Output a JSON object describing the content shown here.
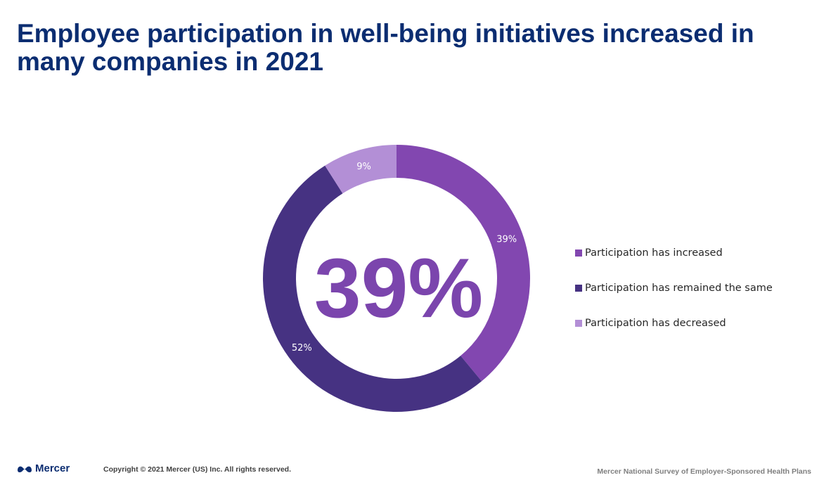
{
  "page": {
    "title": "Employee participation in well-being initiatives increased in many companies in 2021",
    "copyright": "Copyright © 2021 Mercer (US) Inc. All rights reserved.",
    "source": "Mercer National Survey of Employer-Sponsored Health Plans",
    "logo_text": "Mercer",
    "logo_icon": "mercer-logo-icon"
  },
  "chart_data": {
    "type": "pie",
    "donut": true,
    "center_label": "39%",
    "slices": [
      {
        "label": "Participation has increased",
        "value": 39,
        "data_label": "39%",
        "color": "#8247b0"
      },
      {
        "label": "Participation has remained the same",
        "value": 52,
        "data_label": "52%",
        "color": "#463282"
      },
      {
        "label": "Participation has decreased",
        "value": 9,
        "data_label": "9%",
        "color": "#b38fd6"
      }
    ],
    "legend_position": "right",
    "center_label_color": "#7b45ad"
  }
}
